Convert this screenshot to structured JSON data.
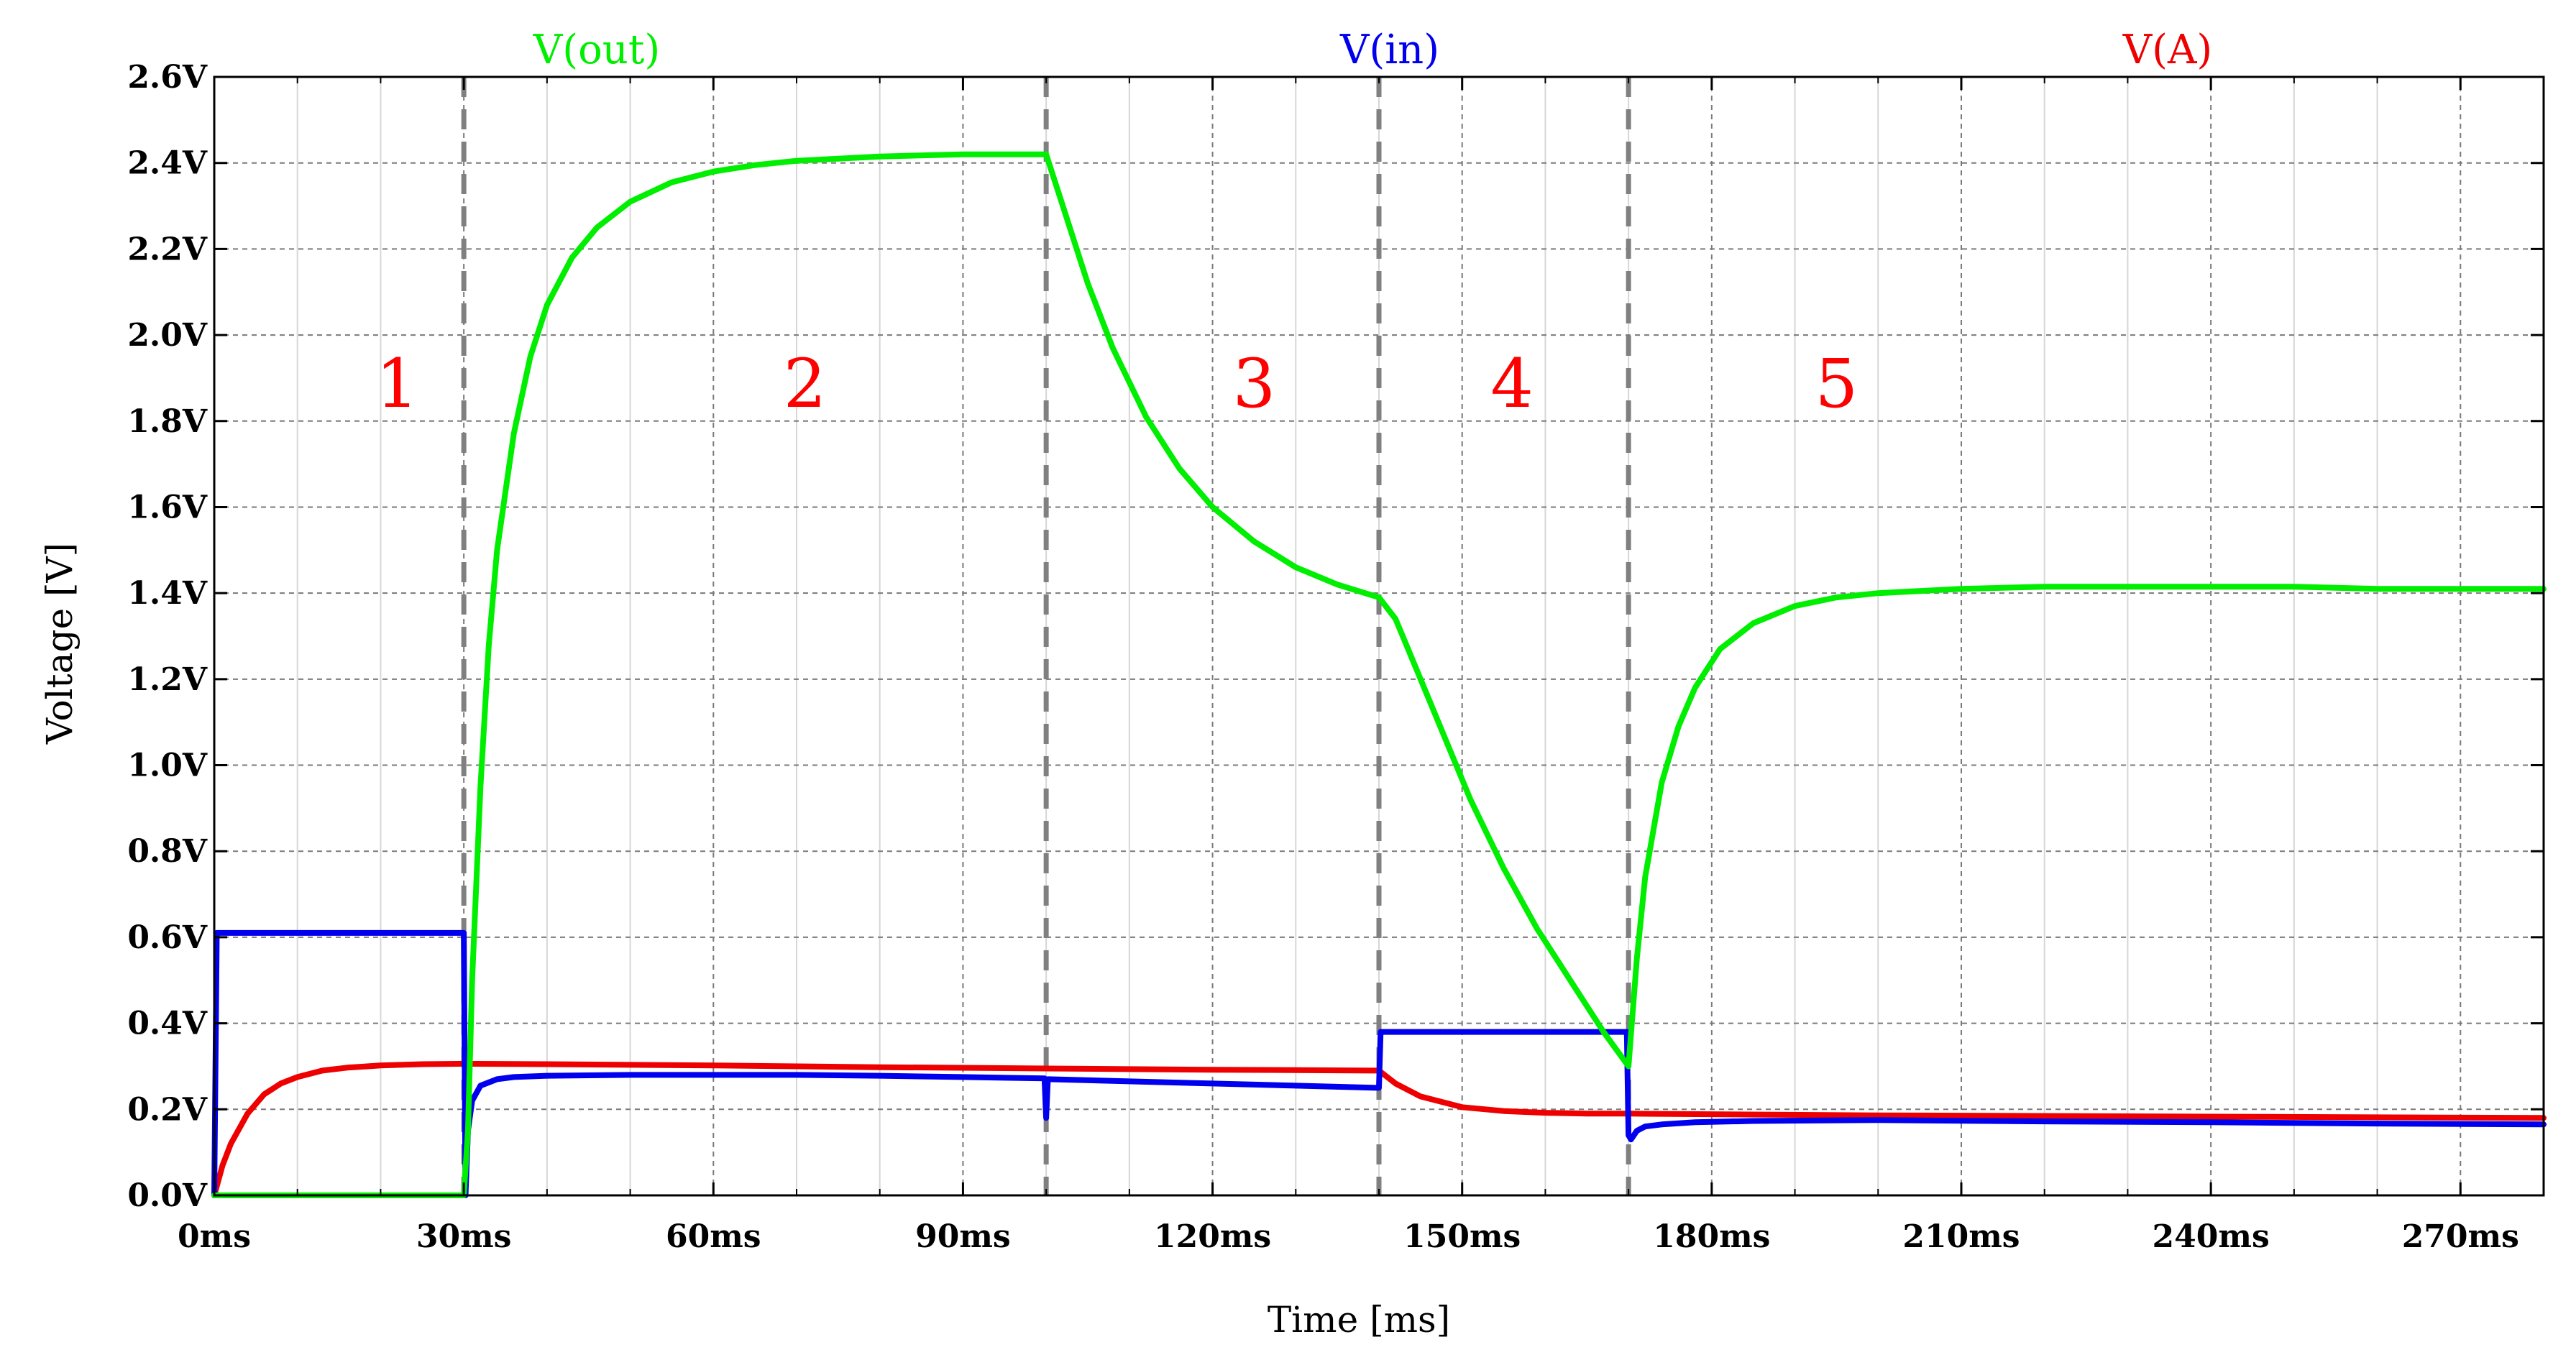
{
  "chart_data": {
    "type": "line",
    "xlabel": "Time [ms]",
    "ylabel": "Voltage [V]",
    "xlim": [
      0,
      280
    ],
    "ylim": [
      0,
      2.6
    ],
    "grid": true,
    "x_ticks": [
      0,
      30,
      60,
      90,
      120,
      150,
      180,
      210,
      240,
      270
    ],
    "x_tick_labels": [
      "0ms",
      "30ms",
      "60ms",
      "90ms",
      "120ms",
      "150ms",
      "180ms",
      "210ms",
      "240ms",
      "270ms"
    ],
    "y_ticks": [
      0,
      0.2,
      0.4,
      0.6,
      0.8,
      1.0,
      1.2,
      1.4,
      1.6,
      1.8,
      2.0,
      2.2,
      2.4,
      2.6
    ],
    "y_tick_labels": [
      "0.0V",
      "0.2V",
      "0.4V",
      "0.6V",
      "0.8V",
      "1.0V",
      "1.2V",
      "1.4V",
      "1.6V",
      "1.8V",
      "2.0V",
      "2.2V",
      "2.4V",
      "2.6V"
    ],
    "minor_x_ticks": [
      10,
      20,
      40,
      50,
      70,
      80,
      100,
      110,
      130,
      140,
      160,
      170,
      190,
      200,
      220,
      230,
      250,
      260,
      280
    ],
    "vlines": [
      30,
      100,
      140,
      170
    ],
    "regions": [
      {
        "label": "1",
        "x": 22
      },
      {
        "label": "2",
        "x": 71
      },
      {
        "label": "3",
        "x": 125
      },
      {
        "label": "4",
        "x": 156
      },
      {
        "label": "5",
        "x": 195
      }
    ],
    "region_label_y": 1.89,
    "series": [
      {
        "name": "V(out)",
        "color": "#00ee00",
        "x": [
          0,
          30,
          30.5,
          31,
          32,
          33,
          34,
          36,
          38,
          40,
          43,
          46,
          50,
          55,
          60,
          65,
          70,
          75,
          80,
          90,
          100,
          102,
          105,
          108,
          112,
          116,
          120,
          125,
          130,
          135,
          140,
          142,
          145,
          148,
          151,
          155,
          159,
          163,
          167,
          170,
          171,
          172,
          174,
          176,
          178,
          181,
          185,
          190,
          195,
          200,
          210,
          220,
          230,
          240,
          250,
          260,
          280
        ],
        "values": [
          0.0,
          0.0,
          0.15,
          0.5,
          0.95,
          1.28,
          1.5,
          1.77,
          1.95,
          2.07,
          2.18,
          2.25,
          2.31,
          2.355,
          2.38,
          2.395,
          2.405,
          2.41,
          2.415,
          2.42,
          2.42,
          2.3,
          2.12,
          1.97,
          1.81,
          1.69,
          1.6,
          1.52,
          1.46,
          1.42,
          1.39,
          1.34,
          1.2,
          1.06,
          0.92,
          0.76,
          0.62,
          0.5,
          0.38,
          0.3,
          0.55,
          0.74,
          0.96,
          1.09,
          1.18,
          1.27,
          1.33,
          1.37,
          1.39,
          1.4,
          1.41,
          1.415,
          1.415,
          1.415,
          1.415,
          1.41,
          1.41
        ]
      },
      {
        "name": "V(in)",
        "color": "#0000ee",
        "x": [
          0,
          0.3,
          30,
          30.2,
          30.5,
          31,
          32,
          34,
          36,
          40,
          50,
          60,
          70,
          80,
          90,
          99.8,
          100,
          100.2,
          110,
          120,
          130,
          139.8,
          140,
          140.2,
          150,
          160,
          169.8,
          170,
          170.3,
          171,
          172,
          174,
          178,
          185,
          200,
          220,
          240,
          260,
          280
        ],
        "values": [
          0.0,
          0.61,
          0.61,
          0.0,
          0.15,
          0.22,
          0.255,
          0.27,
          0.275,
          0.278,
          0.28,
          0.28,
          0.28,
          0.278,
          0.275,
          0.272,
          0.18,
          0.27,
          0.265,
          0.26,
          0.255,
          0.25,
          0.25,
          0.38,
          0.38,
          0.38,
          0.38,
          0.14,
          0.13,
          0.15,
          0.16,
          0.165,
          0.17,
          0.173,
          0.175,
          0.172,
          0.17,
          0.167,
          0.165
        ]
      },
      {
        "name": "V(A)",
        "color": "#ee0000",
        "x": [
          0,
          1,
          2,
          4,
          6,
          8,
          10,
          13,
          16,
          20,
          25,
          30,
          40,
          60,
          80,
          100,
          120,
          140,
          142,
          145,
          150,
          155,
          160,
          165,
          170,
          200,
          240,
          280
        ],
        "values": [
          0.0,
          0.07,
          0.12,
          0.19,
          0.235,
          0.26,
          0.275,
          0.29,
          0.297,
          0.302,
          0.305,
          0.306,
          0.305,
          0.302,
          0.298,
          0.295,
          0.292,
          0.29,
          0.26,
          0.23,
          0.205,
          0.196,
          0.192,
          0.19,
          0.19,
          0.186,
          0.183,
          0.18
        ]
      }
    ],
    "legend": [
      {
        "label": "V(out)",
        "color": "#00ee00"
      },
      {
        "label": "V(in)",
        "color": "#0000ee"
      },
      {
        "label": "V(A)",
        "color": "#ee0000"
      }
    ]
  }
}
